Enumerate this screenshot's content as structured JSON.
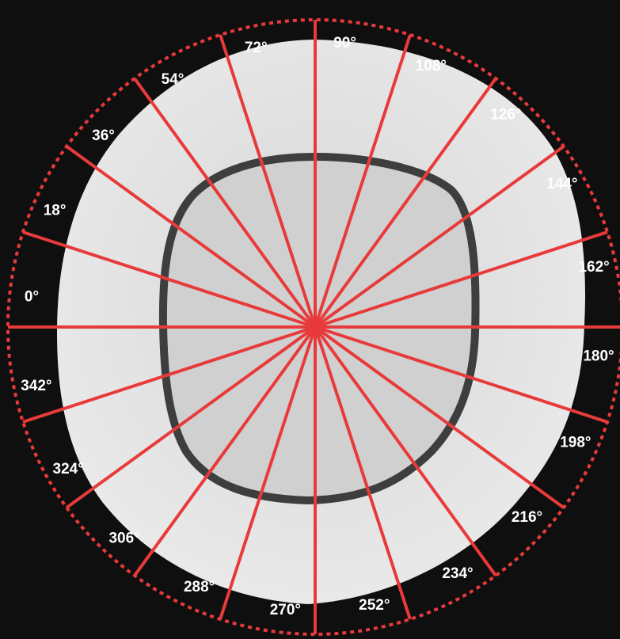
{
  "figure": {
    "angles": [
      {
        "deg": 0,
        "label": "0°"
      },
      {
        "deg": 18,
        "label": "18°"
      },
      {
        "deg": 36,
        "label": "36°"
      },
      {
        "deg": 54,
        "label": "54°"
      },
      {
        "deg": 72,
        "label": "72°"
      },
      {
        "deg": 90,
        "label": "90°"
      },
      {
        "deg": 108,
        "label": "108°"
      },
      {
        "deg": 126,
        "label": "126°"
      },
      {
        "deg": 144,
        "label": "144°"
      },
      {
        "deg": 162,
        "label": "162°"
      },
      {
        "deg": 180,
        "label": "180°"
      },
      {
        "deg": 198,
        "label": "198°"
      },
      {
        "deg": 216,
        "label": "216°"
      },
      {
        "deg": 234,
        "label": "234°"
      },
      {
        "deg": 252,
        "label": "252°"
      },
      {
        "deg": 270,
        "label": "270°"
      },
      {
        "deg": 288,
        "label": "288°"
      },
      {
        "deg": 306,
        "label": "306°"
      },
      {
        "deg": 324,
        "label": "324°"
      },
      {
        "deg": 342,
        "label": "342°"
      }
    ],
    "colors": {
      "background": "#0f0f0f",
      "outer_section": "#e4e4e4",
      "inner_section": "#d2d2d2",
      "inner_ring": "#3e3e3e",
      "red_lines": "#e83a3a",
      "labels": "#ffffff"
    }
  }
}
